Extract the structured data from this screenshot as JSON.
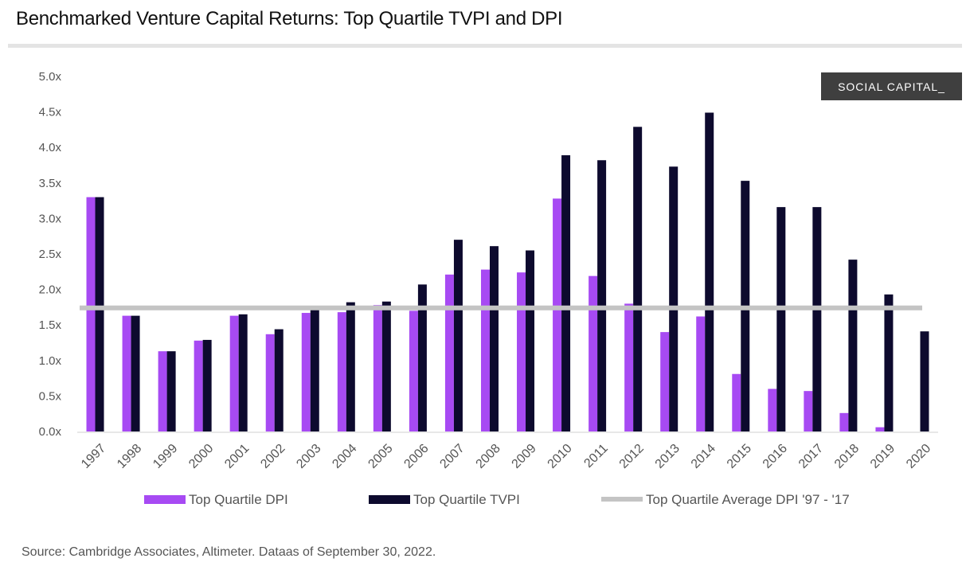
{
  "title": "Benchmarked Venture Capital Returns: Top Quartile TVPI and DPI",
  "brand_label": "SOCIAL CAPITAL_",
  "source": "Source: Cambridge Associates, Altimeter. Dataas of September 30, 2022.",
  "colors": {
    "dpi": "#a74af3",
    "tvpi": "#0d0a2e",
    "average": "#c4c4c4"
  },
  "chart_data": {
    "type": "bar",
    "title": "Benchmarked Venture Capital Returns: Top Quartile TVPI and DPI",
    "xlabel": "",
    "ylabel": "",
    "ylim": [
      0,
      5.0
    ],
    "ytick_values": [
      0,
      0.5,
      1.0,
      1.5,
      2.0,
      2.5,
      3.0,
      3.5,
      4.0,
      4.5,
      5.0
    ],
    "ytick_labels": [
      "0.0x",
      "0.5x",
      "1.0x",
      "1.5x",
      "2.0x",
      "2.5x",
      "3.0x",
      "3.5x",
      "4.0x",
      "4.5x",
      "5.0x"
    ],
    "grid": false,
    "legend_position": "bottom",
    "categories": [
      "1997",
      "1998",
      "1999",
      "2000",
      "2001",
      "2002",
      "2003",
      "2004",
      "2005",
      "2006",
      "2007",
      "2008",
      "2009",
      "2010",
      "2011",
      "2012",
      "2013",
      "2014",
      "2015",
      "2016",
      "2017",
      "2018",
      "2019",
      "2020"
    ],
    "series": [
      {
        "name": "Top Quartile DPI",
        "values": [
          3.3,
          1.63,
          1.13,
          1.28,
          1.63,
          1.37,
          1.67,
          1.68,
          1.78,
          1.7,
          2.21,
          2.28,
          2.24,
          3.28,
          2.19,
          1.8,
          1.4,
          1.62,
          0.81,
          0.6,
          0.57,
          0.26,
          0.06,
          0.0
        ]
      },
      {
        "name": "Top Quartile TVPI",
        "values": [
          3.3,
          1.63,
          1.13,
          1.29,
          1.65,
          1.44,
          1.77,
          1.82,
          1.83,
          2.07,
          2.7,
          2.61,
          2.55,
          3.89,
          3.82,
          4.29,
          3.73,
          4.49,
          3.53,
          3.16,
          3.16,
          2.42,
          1.93,
          1.41
        ]
      }
    ],
    "reference_line": {
      "name": "Top Quartile Average DPI '97 - '17",
      "value": 1.74
    }
  }
}
